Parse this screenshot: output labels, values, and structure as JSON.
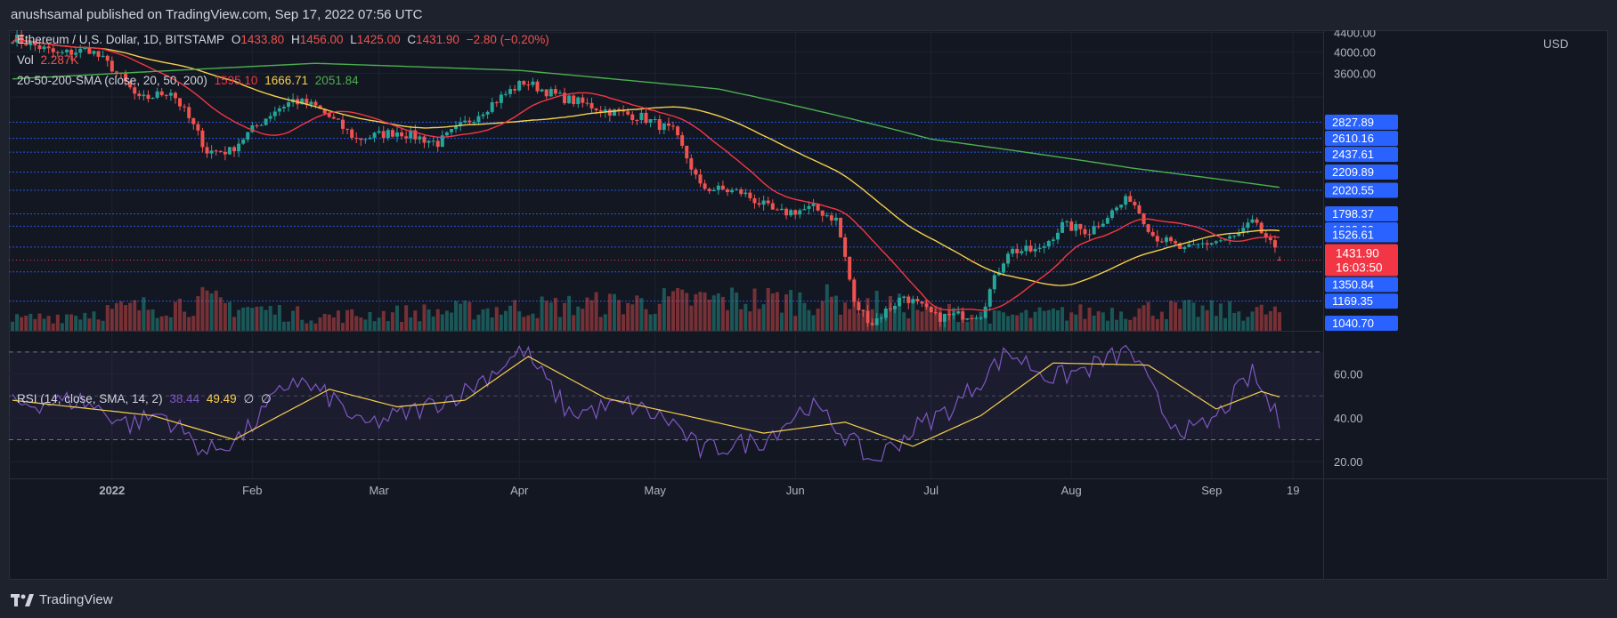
{
  "header": {
    "publish_line": "anushsamal published on TradingView.com, Sep 17, 2022 07:56 UTC"
  },
  "legend": {
    "symbol": "Ethereum / U.S. Dollar, 1D, BITSTAMP",
    "o_label": "O",
    "o": "1433.80",
    "h_label": "H",
    "h": "1456.00",
    "l_label": "L",
    "l": "1425.00",
    "c_label": "C",
    "c": "1431.90",
    "change": "−2.80 (−0.20%)",
    "vol_label": "Vol",
    "vol": "2.287K",
    "sma_label": "20-50-200-SMA (close, 20, 50, 200)",
    "sma20": "1595.10",
    "sma50": "1666.71",
    "sma200": "2051.84"
  },
  "rsi_legend": {
    "label": "RSI (14, close, SMA, 14, 2)",
    "rsi": "38.44",
    "sma": "49.49",
    "e1": "∅",
    "e2": "∅"
  },
  "price_axis": {
    "currency": "USD",
    "plain_ticks": [
      "4400.00",
      "4000.00",
      "3600.00"
    ],
    "level_badges": [
      "2827.89",
      "2610.16",
      "2437.61",
      "2209.89",
      "2020.55",
      "1798.37",
      "1692.38",
      "1526.61",
      "1350.84",
      "1169.35",
      "1040.70"
    ],
    "last_price": "1431.90",
    "countdown": "16:03:50"
  },
  "rsi_axis": {
    "ticks": [
      "60.00",
      "40.00",
      "20.00"
    ]
  },
  "time_axis": {
    "labels": [
      "2022",
      "Feb",
      "Mar",
      "Apr",
      "May",
      "Jun",
      "Jul",
      "Aug",
      "Sep",
      "19"
    ]
  },
  "footer": {
    "brand": "TradingView"
  },
  "colors": {
    "up": "#26a69a",
    "down": "#ef5350",
    "sma20": "#f23645",
    "sma50": "#f5d04c",
    "sma200": "#4caf50",
    "rsi": "#7e57c2",
    "level": "#2962ff",
    "last": "#f23645"
  },
  "chart_data": {
    "type": "candlestick",
    "x_range": [
      "2021-12-10",
      "2022-09-16"
    ],
    "y_scale": "log",
    "price_key_points": [
      {
        "date": "2021-12-10",
        "price": 4300
      },
      {
        "date": "2021-12-20",
        "price": 3950
      },
      {
        "date": "2021-12-27",
        "price": 4050
      },
      {
        "date": "2022-01-01",
        "price": 3700
      },
      {
        "date": "2022-01-07",
        "price": 3150
      },
      {
        "date": "2022-01-14",
        "price": 3300
      },
      {
        "date": "2022-01-22",
        "price": 2450
      },
      {
        "date": "2022-01-27",
        "price": 2450
      },
      {
        "date": "2022-02-06",
        "price": 3000
      },
      {
        "date": "2022-02-10",
        "price": 3150
      },
      {
        "date": "2022-02-15",
        "price": 3050
      },
      {
        "date": "2022-02-24",
        "price": 2600
      },
      {
        "date": "2022-03-05",
        "price": 2700
      },
      {
        "date": "2022-03-14",
        "price": 2550
      },
      {
        "date": "2022-03-22",
        "price": 2900
      },
      {
        "date": "2022-04-02",
        "price": 3450
      },
      {
        "date": "2022-04-10",
        "price": 3200
      },
      {
        "date": "2022-04-20",
        "price": 3000
      },
      {
        "date": "2022-04-28",
        "price": 2900
      },
      {
        "date": "2022-05-05",
        "price": 2700
      },
      {
        "date": "2022-05-11",
        "price": 2050
      },
      {
        "date": "2022-05-20",
        "price": 2000
      },
      {
        "date": "2022-05-28",
        "price": 1800
      },
      {
        "date": "2022-06-05",
        "price": 1850
      },
      {
        "date": "2022-06-10",
        "price": 1750
      },
      {
        "date": "2022-06-14",
        "price": 1150
      },
      {
        "date": "2022-06-18",
        "price": 1050
      },
      {
        "date": "2022-06-25",
        "price": 1200
      },
      {
        "date": "2022-07-02",
        "price": 1080
      },
      {
        "date": "2022-07-12",
        "price": 1100
      },
      {
        "date": "2022-07-18",
        "price": 1500
      },
      {
        "date": "2022-07-25",
        "price": 1500
      },
      {
        "date": "2022-07-30",
        "price": 1700
      },
      {
        "date": "2022-08-05",
        "price": 1650
      },
      {
        "date": "2022-08-14",
        "price": 1950
      },
      {
        "date": "2022-08-19",
        "price": 1620
      },
      {
        "date": "2022-08-26",
        "price": 1500
      },
      {
        "date": "2022-08-30",
        "price": 1550
      },
      {
        "date": "2022-09-06",
        "price": 1600
      },
      {
        "date": "2022-09-10",
        "price": 1720
      },
      {
        "date": "2022-09-13",
        "price": 1600
      },
      {
        "date": "2022-09-16",
        "price": 1432
      }
    ],
    "sma200_key_points": [
      {
        "date": "2021-12-10",
        "price": 3500
      },
      {
        "date": "2022-02-15",
        "price": 3780
      },
      {
        "date": "2022-04-01",
        "price": 3650
      },
      {
        "date": "2022-05-15",
        "price": 3330
      },
      {
        "date": "2022-07-01",
        "price": 2600
      },
      {
        "date": "2022-08-15",
        "price": 2250
      },
      {
        "date": "2022-09-16",
        "price": 2050
      }
    ],
    "rsi_key_points": [
      {
        "date": "2021-12-10",
        "value": 46
      },
      {
        "date": "2021-12-25",
        "value": 48
      },
      {
        "date": "2022-01-05",
        "value": 37
      },
      {
        "date": "2022-01-12",
        "value": 42
      },
      {
        "date": "2022-01-22",
        "value": 24
      },
      {
        "date": "2022-01-30",
        "value": 32
      },
      {
        "date": "2022-02-10",
        "value": 58
      },
      {
        "date": "2022-02-20",
        "value": 47
      },
      {
        "date": "2022-02-25",
        "value": 36
      },
      {
        "date": "2022-03-10",
        "value": 44
      },
      {
        "date": "2022-03-20",
        "value": 52
      },
      {
        "date": "2022-04-02",
        "value": 71
      },
      {
        "date": "2022-04-12",
        "value": 42
      },
      {
        "date": "2022-04-25",
        "value": 46
      },
      {
        "date": "2022-05-05",
        "value": 38
      },
      {
        "date": "2022-05-11",
        "value": 25
      },
      {
        "date": "2022-05-25",
        "value": 30
      },
      {
        "date": "2022-06-04",
        "value": 46
      },
      {
        "date": "2022-06-10",
        "value": 36
      },
      {
        "date": "2022-06-18",
        "value": 20
      },
      {
        "date": "2022-06-28",
        "value": 36
      },
      {
        "date": "2022-07-06",
        "value": 45
      },
      {
        "date": "2022-07-18",
        "value": 70
      },
      {
        "date": "2022-07-28",
        "value": 58
      },
      {
        "date": "2022-08-04",
        "value": 62
      },
      {
        "date": "2022-08-14",
        "value": 71
      },
      {
        "date": "2022-08-22",
        "value": 40
      },
      {
        "date": "2022-08-28",
        "value": 33
      },
      {
        "date": "2022-09-02",
        "value": 40
      },
      {
        "date": "2022-09-10",
        "value": 60
      },
      {
        "date": "2022-09-16",
        "value": 38
      }
    ],
    "rsi_sma_key_points": [
      {
        "date": "2021-12-10",
        "value": 48
      },
      {
        "date": "2022-01-10",
        "value": 41
      },
      {
        "date": "2022-01-28",
        "value": 30
      },
      {
        "date": "2022-02-18",
        "value": 53
      },
      {
        "date": "2022-03-05",
        "value": 45
      },
      {
        "date": "2022-03-20",
        "value": 48
      },
      {
        "date": "2022-04-03",
        "value": 68
      },
      {
        "date": "2022-04-20",
        "value": 49
      },
      {
        "date": "2022-05-10",
        "value": 40
      },
      {
        "date": "2022-05-25",
        "value": 33
      },
      {
        "date": "2022-06-12",
        "value": 38
      },
      {
        "date": "2022-06-27",
        "value": 27
      },
      {
        "date": "2022-07-12",
        "value": 41
      },
      {
        "date": "2022-07-28",
        "value": 65
      },
      {
        "date": "2022-08-18",
        "value": 64
      },
      {
        "date": "2022-09-02",
        "value": 44
      },
      {
        "date": "2022-09-12",
        "value": 52
      },
      {
        "date": "2022-09-16",
        "value": 49.5
      }
    ],
    "volume_key_points": [
      {
        "date": "2021-12-10",
        "value": 0.35
      },
      {
        "date": "2022-01-21",
        "value": 0.95
      },
      {
        "date": "2022-02-15",
        "value": 0.45
      },
      {
        "date": "2022-05-11",
        "value": 1.0
      },
      {
        "date": "2022-06-13",
        "value": 1.0
      },
      {
        "date": "2022-06-18",
        "value": 0.9
      },
      {
        "date": "2022-07-15",
        "value": 0.45
      },
      {
        "date": "2022-08-19",
        "value": 0.7
      },
      {
        "date": "2022-09-15",
        "value": 0.6
      }
    ],
    "rsi_levels": [
      70,
      50,
      30
    ]
  }
}
